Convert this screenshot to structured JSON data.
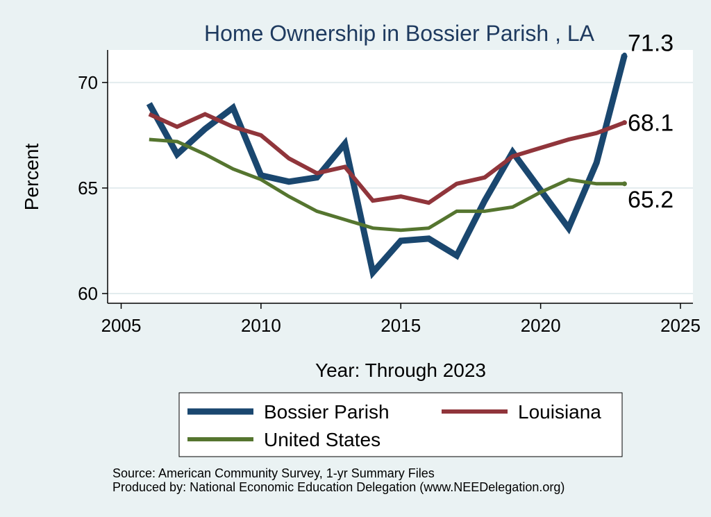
{
  "chart_data": {
    "type": "line",
    "title": "Home Ownership in Bossier Parish , LA",
    "xlabel": "Year: Through 2023",
    "ylabel": "Percent",
    "xlim": [
      2005,
      2025
    ],
    "ylim": [
      60,
      71.5
    ],
    "x_ticks": [
      2005,
      2010,
      2015,
      2020,
      2025
    ],
    "y_ticks": [
      60,
      65,
      70
    ],
    "grid": "horizontal",
    "x": [
      2006,
      2007,
      2008,
      2009,
      2010,
      2011,
      2012,
      2013,
      2014,
      2015,
      2016,
      2017,
      2018,
      2019,
      2020,
      2021,
      2022,
      2023
    ],
    "series": [
      {
        "name": "Bossier Parish",
        "color": "#1a476f",
        "values": [
          69.0,
          66.6,
          67.8,
          68.8,
          65.6,
          65.3,
          65.5,
          67.1,
          61.0,
          62.5,
          62.6,
          61.8,
          64.4,
          66.7,
          64.9,
          63.1,
          66.2,
          71.3
        ]
      },
      {
        "name": "Louisiana",
        "color": "#90353b",
        "values": [
          68.5,
          67.9,
          68.5,
          67.9,
          67.5,
          66.4,
          65.7,
          66.0,
          64.4,
          64.6,
          64.3,
          65.2,
          65.5,
          66.5,
          66.9,
          67.3,
          67.6,
          68.1
        ]
      },
      {
        "name": "United States",
        "color": "#55752f",
        "values": [
          67.3,
          67.2,
          66.6,
          65.9,
          65.4,
          64.6,
          63.9,
          63.5,
          63.1,
          63.0,
          63.1,
          63.9,
          63.9,
          64.1,
          64.8,
          65.4,
          65.2,
          65.2
        ]
      }
    ],
    "end_labels": [
      "71.3",
      "68.1",
      "65.2"
    ],
    "legend_position": "bottom"
  },
  "footer": {
    "source": "Source: American Community Survey, 1-yr Summary Files",
    "producer": "Produced by: National Economic Education Delegation (www.NEEDelegation.org)"
  }
}
